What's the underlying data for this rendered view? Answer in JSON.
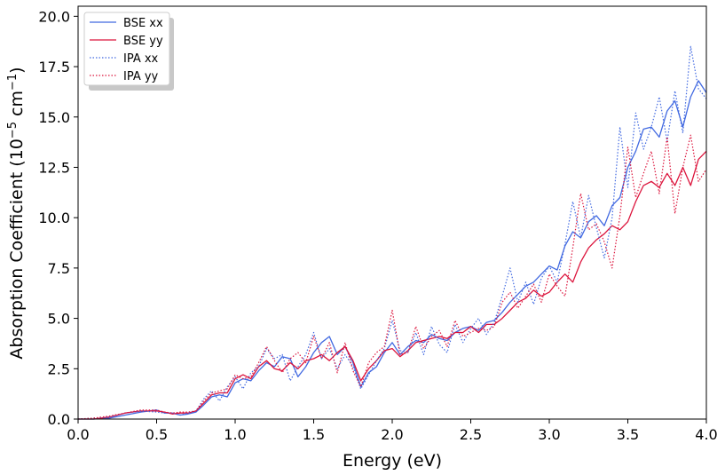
{
  "chart_data": {
    "type": "line",
    "title": "",
    "xlabel": "Energy (eV)",
    "ylabel_main": "Absorption Coefficient (10",
    "ylabel_exp1": "−5",
    "ylabel_mid": " cm",
    "ylabel_exp2": "−1",
    "ylabel_end": ")",
    "xlim": [
      0.0,
      4.0
    ],
    "ylim": [
      0.0,
      20.5
    ],
    "xticks": [
      "0.0",
      "0.5",
      "1.0",
      "1.5",
      "2.0",
      "2.5",
      "3.0",
      "3.5",
      "4.0"
    ],
    "yticks": [
      "0.0",
      "2.5",
      "5.0",
      "7.5",
      "10.0",
      "12.5",
      "15.0",
      "17.5",
      "20.0"
    ],
    "grid": false,
    "legend_position": "top-left",
    "series": [
      {
        "name": "BSE xx",
        "color": "#4169E1",
        "style": "solid",
        "x": [
          0.0,
          0.1,
          0.2,
          0.3,
          0.4,
          0.5,
          0.55,
          0.6,
          0.65,
          0.7,
          0.75,
          0.8,
          0.85,
          0.9,
          0.95,
          1.0,
          1.05,
          1.1,
          1.15,
          1.2,
          1.25,
          1.3,
          1.35,
          1.4,
          1.45,
          1.5,
          1.55,
          1.6,
          1.65,
          1.7,
          1.75,
          1.8,
          1.85,
          1.9,
          1.95,
          2.0,
          2.05,
          2.1,
          2.15,
          2.2,
          2.25,
          2.3,
          2.35,
          2.4,
          2.45,
          2.5,
          2.55,
          2.6,
          2.65,
          2.7,
          2.75,
          2.8,
          2.85,
          2.9,
          2.95,
          3.0,
          3.05,
          3.1,
          3.15,
          3.2,
          3.25,
          3.3,
          3.35,
          3.4,
          3.45,
          3.5,
          3.55,
          3.6,
          3.65,
          3.7,
          3.75,
          3.8,
          3.85,
          3.9,
          3.95,
          4.0
        ],
        "y": [
          0.0,
          0.0,
          0.05,
          0.2,
          0.35,
          0.45,
          0.3,
          0.3,
          0.2,
          0.25,
          0.35,
          0.7,
          1.1,
          1.2,
          1.1,
          1.8,
          2.0,
          1.9,
          2.4,
          2.8,
          2.6,
          3.1,
          3.0,
          2.1,
          2.6,
          3.3,
          3.8,
          4.1,
          3.2,
          3.6,
          2.8,
          1.6,
          2.3,
          2.6,
          3.3,
          3.8,
          3.2,
          3.6,
          3.9,
          3.8,
          4.2,
          4.0,
          3.9,
          4.3,
          4.5,
          4.6,
          4.4,
          4.8,
          4.9,
          5.3,
          5.8,
          6.2,
          6.6,
          6.8,
          7.2,
          7.6,
          7.4,
          8.6,
          9.3,
          9.0,
          9.8,
          10.1,
          9.6,
          10.6,
          11.0,
          12.5,
          13.3,
          14.4,
          14.5,
          14.0,
          15.3,
          15.8,
          14.5,
          16.0,
          16.8,
          16.2
        ]
      },
      {
        "name": "BSE yy",
        "color": "#DC143C",
        "style": "solid",
        "x": [
          0.0,
          0.1,
          0.2,
          0.3,
          0.4,
          0.5,
          0.55,
          0.6,
          0.65,
          0.7,
          0.75,
          0.8,
          0.85,
          0.9,
          0.95,
          1.0,
          1.05,
          1.1,
          1.15,
          1.2,
          1.25,
          1.3,
          1.35,
          1.4,
          1.45,
          1.5,
          1.55,
          1.6,
          1.65,
          1.7,
          1.75,
          1.8,
          1.85,
          1.9,
          1.95,
          2.0,
          2.05,
          2.1,
          2.15,
          2.2,
          2.25,
          2.3,
          2.35,
          2.4,
          2.45,
          2.5,
          2.55,
          2.6,
          2.65,
          2.7,
          2.75,
          2.8,
          2.85,
          2.9,
          2.95,
          3.0,
          3.05,
          3.1,
          3.15,
          3.2,
          3.25,
          3.3,
          3.35,
          3.4,
          3.45,
          3.5,
          3.55,
          3.6,
          3.65,
          3.7,
          3.75,
          3.8,
          3.85,
          3.9,
          3.95,
          4.0
        ],
        "y": [
          0.0,
          0.0,
          0.1,
          0.3,
          0.4,
          0.4,
          0.35,
          0.25,
          0.3,
          0.3,
          0.4,
          0.8,
          1.2,
          1.3,
          1.3,
          2.0,
          2.2,
          2.0,
          2.6,
          2.9,
          2.5,
          2.4,
          2.8,
          2.5,
          2.9,
          3.0,
          3.2,
          2.9,
          3.3,
          3.6,
          2.9,
          1.9,
          2.5,
          2.9,
          3.4,
          3.5,
          3.1,
          3.4,
          3.8,
          3.9,
          4.0,
          4.1,
          4.0,
          4.3,
          4.3,
          4.6,
          4.3,
          4.7,
          4.7,
          5.0,
          5.4,
          5.8,
          6.0,
          6.4,
          6.1,
          6.3,
          6.8,
          7.2,
          6.8,
          7.8,
          8.5,
          8.9,
          9.2,
          9.6,
          9.4,
          9.8,
          10.8,
          11.6,
          11.8,
          11.5,
          12.2,
          11.6,
          12.5,
          11.6,
          12.9,
          13.3
        ]
      },
      {
        "name": "IPA xx",
        "color": "#4169E1",
        "style": "dotted",
        "x": [
          0.0,
          0.1,
          0.2,
          0.3,
          0.4,
          0.5,
          0.55,
          0.6,
          0.65,
          0.7,
          0.75,
          0.8,
          0.85,
          0.9,
          0.95,
          1.0,
          1.05,
          1.1,
          1.15,
          1.2,
          1.25,
          1.3,
          1.35,
          1.4,
          1.45,
          1.5,
          1.55,
          1.6,
          1.65,
          1.7,
          1.75,
          1.8,
          1.85,
          1.9,
          1.95,
          2.0,
          2.05,
          2.1,
          2.15,
          2.2,
          2.25,
          2.3,
          2.35,
          2.4,
          2.45,
          2.5,
          2.55,
          2.6,
          2.65,
          2.7,
          2.75,
          2.8,
          2.85,
          2.9,
          2.95,
          3.0,
          3.05,
          3.1,
          3.15,
          3.2,
          3.25,
          3.3,
          3.35,
          3.4,
          3.45,
          3.5,
          3.55,
          3.6,
          3.65,
          3.7,
          3.75,
          3.8,
          3.85,
          3.9,
          3.95,
          4.0
        ],
        "y": [
          0.0,
          0.05,
          0.1,
          0.3,
          0.4,
          0.35,
          0.3,
          0.3,
          0.2,
          0.3,
          0.4,
          1.0,
          1.4,
          0.9,
          1.6,
          2.1,
          1.5,
          2.3,
          2.6,
          3.5,
          3.0,
          3.2,
          1.9,
          2.6,
          3.2,
          4.3,
          3.0,
          3.5,
          2.5,
          3.2,
          2.6,
          1.5,
          2.2,
          2.9,
          3.5,
          4.9,
          3.4,
          3.3,
          4.3,
          3.2,
          4.6,
          3.7,
          3.3,
          4.7,
          3.8,
          4.5,
          5.0,
          4.2,
          4.8,
          6.1,
          7.5,
          5.8,
          6.8,
          5.7,
          7.0,
          7.6,
          6.8,
          8.7,
          10.8,
          9.0,
          11.1,
          9.5,
          8.0,
          10.0,
          14.5,
          11.5,
          15.2,
          13.4,
          14.5,
          16.0,
          13.8,
          16.3,
          14.2,
          18.5,
          16.4,
          15.9
        ]
      },
      {
        "name": "IPA yy",
        "color": "#DC143C",
        "style": "dotted",
        "x": [
          0.0,
          0.1,
          0.2,
          0.3,
          0.4,
          0.5,
          0.55,
          0.6,
          0.65,
          0.7,
          0.75,
          0.8,
          0.85,
          0.9,
          0.95,
          1.0,
          1.05,
          1.1,
          1.15,
          1.2,
          1.25,
          1.3,
          1.35,
          1.4,
          1.45,
          1.5,
          1.55,
          1.6,
          1.65,
          1.7,
          1.75,
          1.8,
          1.85,
          1.9,
          1.95,
          2.0,
          2.05,
          2.1,
          2.15,
          2.2,
          2.25,
          2.3,
          2.35,
          2.4,
          2.45,
          2.5,
          2.55,
          2.6,
          2.65,
          2.7,
          2.75,
          2.8,
          2.85,
          2.9,
          2.95,
          3.0,
          3.05,
          3.1,
          3.15,
          3.2,
          3.25,
          3.3,
          3.35,
          3.4,
          3.45,
          3.5,
          3.55,
          3.6,
          3.65,
          3.7,
          3.75,
          3.8,
          3.85,
          3.9,
          3.95,
          4.0
        ],
        "y": [
          0.0,
          0.05,
          0.15,
          0.3,
          0.45,
          0.45,
          0.35,
          0.3,
          0.35,
          0.35,
          0.4,
          0.9,
          1.3,
          1.4,
          1.5,
          2.2,
          2.0,
          2.1,
          2.8,
          3.6,
          2.9,
          2.3,
          3.0,
          3.3,
          2.8,
          4.1,
          3.0,
          3.8,
          2.3,
          3.8,
          2.4,
          1.6,
          2.8,
          3.3,
          3.6,
          5.4,
          3.2,
          3.3,
          4.6,
          3.5,
          4.1,
          4.4,
          3.6,
          4.9,
          4.1,
          4.3,
          4.5,
          4.4,
          4.6,
          5.8,
          6.3,
          5.5,
          6.1,
          6.7,
          5.8,
          7.2,
          6.6,
          6.1,
          8.5,
          11.2,
          9.4,
          9.7,
          8.8,
          7.5,
          10.1,
          13.5,
          11.0,
          12.2,
          13.3,
          11.2,
          14.0,
          10.2,
          12.5,
          14.1,
          11.8,
          12.4
        ]
      }
    ]
  }
}
